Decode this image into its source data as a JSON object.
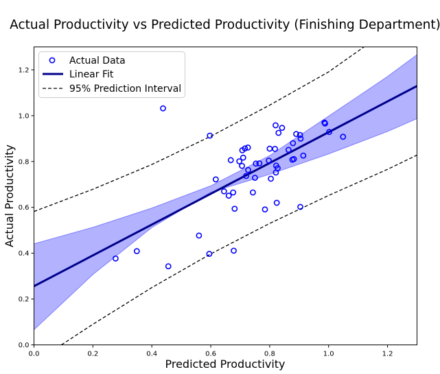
{
  "chart_data": {
    "type": "scatter",
    "title": "Actual Productivity vs Predicted Productivity (Finishing Department)",
    "xlabel": "Predicted Productivity",
    "ylabel": "Actual Productivity",
    "xlim": [
      0.0,
      1.3
    ],
    "ylim": [
      0.0,
      1.3
    ],
    "xticks": [
      0.0,
      0.2,
      0.4,
      0.6,
      0.8,
      1.0,
      1.2
    ],
    "yticks": [
      0.0,
      0.2,
      0.4,
      0.6,
      0.8,
      1.0,
      1.2
    ],
    "xtick_labels": [
      "0.0",
      "0.2",
      "0.4",
      "0.6",
      "0.8",
      "1.0",
      "1.2"
    ],
    "ytick_labels": [
      "0.0",
      "0.2",
      "0.4",
      "0.6",
      "0.8",
      "1.0",
      "1.2"
    ],
    "grid": false,
    "legend_position": "top-left",
    "legend": [
      {
        "label": "Actual Data",
        "style": "marker"
      },
      {
        "label": "Linear Fit",
        "style": "thick-line"
      },
      {
        "label": "95% Prediction Interval",
        "style": "dashed-line"
      }
    ],
    "colors": {
      "points": "#0000ff",
      "fit_line": "#00008b",
      "confidence_band": "#0000ff",
      "prediction_interval": "#000000"
    },
    "series": [
      {
        "name": "Actual Data",
        "kind": "scatter",
        "points": [
          [
            0.277,
            0.377
          ],
          [
            0.349,
            0.409
          ],
          [
            0.438,
            1.032
          ],
          [
            0.456,
            0.343
          ],
          [
            0.56,
            0.477
          ],
          [
            0.595,
            0.397
          ],
          [
            0.597,
            0.913
          ],
          [
            0.617,
            0.722
          ],
          [
            0.645,
            0.67
          ],
          [
            0.661,
            0.651
          ],
          [
            0.668,
            0.806
          ],
          [
            0.676,
            0.665
          ],
          [
            0.678,
            0.411
          ],
          [
            0.681,
            0.594
          ],
          [
            0.697,
            0.801
          ],
          [
            0.706,
            0.781
          ],
          [
            0.707,
            0.849
          ],
          [
            0.71,
            0.817
          ],
          [
            0.716,
            0.857
          ],
          [
            0.72,
            0.737
          ],
          [
            0.726,
            0.861
          ],
          [
            0.727,
            0.763
          ],
          [
            0.743,
            0.665
          ],
          [
            0.75,
            0.729
          ],
          [
            0.753,
            0.791
          ],
          [
            0.765,
            0.792
          ],
          [
            0.784,
            0.591
          ],
          [
            0.797,
            0.804
          ],
          [
            0.8,
            0.856
          ],
          [
            0.804,
            0.725
          ],
          [
            0.818,
            0.855
          ],
          [
            0.82,
            0.958
          ],
          [
            0.821,
            0.752
          ],
          [
            0.822,
            0.782
          ],
          [
            0.824,
            0.62
          ],
          [
            0.827,
            0.771
          ],
          [
            0.83,
            0.925
          ],
          [
            0.842,
            0.947
          ],
          [
            0.864,
            0.851
          ],
          [
            0.877,
            0.808
          ],
          [
            0.879,
            0.88
          ],
          [
            0.882,
            0.811
          ],
          [
            0.89,
            0.92
          ],
          [
            0.903,
            0.916
          ],
          [
            0.904,
            0.602
          ],
          [
            0.905,
            0.9
          ],
          [
            0.914,
            0.826
          ],
          [
            0.986,
            0.97
          ],
          [
            0.988,
            0.966
          ],
          [
            1.002,
            0.929
          ],
          [
            1.049,
            0.908
          ]
        ]
      },
      {
        "name": "Linear Fit",
        "kind": "line",
        "intercept": 0.256,
        "slope": 0.672
      },
      {
        "name": "95% Prediction Interval",
        "kind": "dashed-lines",
        "upper": [
          [
            0.0,
            0.582
          ],
          [
            0.2,
            0.679
          ],
          [
            0.4,
            0.787
          ],
          [
            0.6,
            0.91
          ],
          [
            0.8,
            1.046
          ],
          [
            1.0,
            1.191
          ],
          [
            1.12,
            1.3
          ]
        ],
        "lower": [
          [
            0.093,
            0.0
          ],
          [
            0.2,
            0.09
          ],
          [
            0.4,
            0.25
          ],
          [
            0.6,
            0.397
          ],
          [
            0.8,
            0.53
          ],
          [
            1.0,
            0.652
          ],
          [
            1.2,
            0.766
          ],
          [
            1.3,
            0.828
          ]
        ]
      },
      {
        "kind": "band",
        "upper": [
          [
            0.0,
            0.441
          ],
          [
            0.2,
            0.513
          ],
          [
            0.4,
            0.597
          ],
          [
            0.6,
            0.694
          ],
          [
            0.8,
            0.826
          ],
          [
            1.0,
            0.998
          ],
          [
            1.2,
            1.171
          ],
          [
            1.3,
            1.266
          ]
        ],
        "lower": [
          [
            0.0,
            0.066
          ],
          [
            0.2,
            0.307
          ],
          [
            0.4,
            0.512
          ],
          [
            0.6,
            0.666
          ],
          [
            0.8,
            0.744
          ],
          [
            1.0,
            0.833
          ],
          [
            1.2,
            0.931
          ],
          [
            1.3,
            0.987
          ]
        ]
      }
    ]
  }
}
